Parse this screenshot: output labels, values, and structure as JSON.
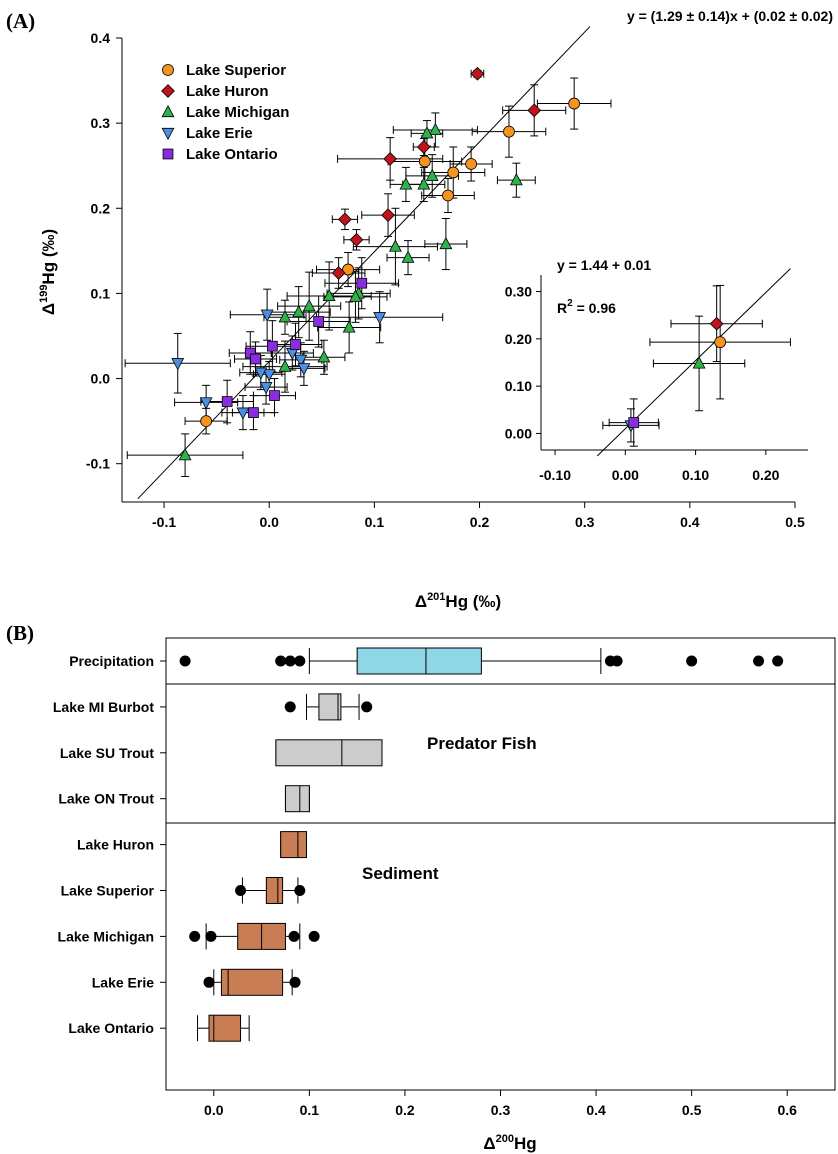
{
  "chart_data": [
    {
      "id": "A",
      "type": "scatter",
      "panel_label": "(A)",
      "xlabel": "Δ201Hg (‰)",
      "ylabel": "Δ199Hg (‰)",
      "xlim": [
        -0.14,
        0.5
      ],
      "ylim": [
        -0.145,
        0.4
      ],
      "xticks": [
        -0.1,
        0.0,
        0.1,
        0.2,
        0.3,
        0.4,
        0.5
      ],
      "xtick_labels": [
        "-0.1",
        "0.0",
        "0.1",
        "0.2",
        "0.3",
        "0.4",
        "0.5"
      ],
      "yticks": [
        -0.1,
        0.0,
        0.1,
        0.2,
        0.3,
        0.4
      ],
      "ytick_labels": [
        "-0.1",
        "0.0",
        "0.1",
        "0.2",
        "0.3",
        "0.4"
      ],
      "equation": "y = (1.29 ± 0.14)x + (0.02 ± 0.02)",
      "regression": {
        "slope": 1.29,
        "intercept": 0.02,
        "x_range": [
          -0.125,
          0.305
        ]
      },
      "legend_position": "top-left",
      "series": [
        {
          "name": "Lake Superior",
          "marker": "circle",
          "color": "#F7941D",
          "points": [
            {
              "x": -0.06,
              "y": -0.05,
              "xe": 0.02,
              "ye": 0.015
            },
            {
              "x": 0.075,
              "y": 0.128,
              "xe": 0.03,
              "ye": 0.02
            },
            {
              "x": 0.148,
              "y": 0.255,
              "xe": 0.035,
              "ye": 0.03
            },
            {
              "x": 0.175,
              "y": 0.242,
              "xe": 0.03,
              "ye": 0.03
            },
            {
              "x": 0.17,
              "y": 0.215,
              "xe": 0.025,
              "ye": 0.02
            },
            {
              "x": 0.192,
              "y": 0.252,
              "xe": 0.02,
              "ye": 0.02
            },
            {
              "x": 0.228,
              "y": 0.29,
              "xe": 0.035,
              "ye": 0.03
            },
            {
              "x": 0.29,
              "y": 0.323,
              "xe": 0.035,
              "ye": 0.03
            }
          ]
        },
        {
          "name": "Lake Huron",
          "marker": "diamond",
          "color": "#C0141C",
          "points": [
            {
              "x": 0.198,
              "y": 0.358,
              "xe": 0.006,
              "ye": 0.004
            },
            {
              "x": 0.252,
              "y": 0.315,
              "xe": 0.03,
              "ye": 0.03
            },
            {
              "x": 0.115,
              "y": 0.258,
              "xe": 0.05,
              "ye": 0.025
            },
            {
              "x": 0.147,
              "y": 0.272,
              "xe": 0.01,
              "ye": 0.01
            },
            {
              "x": 0.072,
              "y": 0.187,
              "xe": 0.012,
              "ye": 0.012
            },
            {
              "x": 0.113,
              "y": 0.192,
              "xe": 0.025,
              "ye": 0.025
            },
            {
              "x": 0.083,
              "y": 0.163,
              "xe": 0.012,
              "ye": 0.012
            },
            {
              "x": 0.066,
              "y": 0.124,
              "xe": 0.025,
              "ye": 0.018
            }
          ]
        },
        {
          "name": "Lake Michigan",
          "marker": "triangle-up",
          "color": "#2DB34A",
          "points": [
            {
              "x": 0.158,
              "y": 0.292,
              "xe": 0.04,
              "ye": 0.02
            },
            {
              "x": 0.15,
              "y": 0.288,
              "xe": 0.015,
              "ye": 0.015
            },
            {
              "x": 0.155,
              "y": 0.238,
              "xe": 0.025,
              "ye": 0.025
            },
            {
              "x": 0.147,
              "y": 0.228,
              "xe": 0.02,
              "ye": 0.02
            },
            {
              "x": 0.13,
              "y": 0.228,
              "xe": 0.015,
              "ye": 0.02
            },
            {
              "x": 0.235,
              "y": 0.233,
              "xe": 0.018,
              "ye": 0.02
            },
            {
              "x": 0.12,
              "y": 0.155,
              "xe": 0.04,
              "ye": 0.045
            },
            {
              "x": 0.168,
              "y": 0.158,
              "xe": 0.02,
              "ye": 0.03
            },
            {
              "x": 0.132,
              "y": 0.142,
              "xe": 0.02,
              "ye": 0.02
            },
            {
              "x": 0.085,
              "y": 0.1,
              "xe": 0.03,
              "ye": 0.03
            },
            {
              "x": 0.082,
              "y": 0.096,
              "xe": 0.03,
              "ye": 0.03
            },
            {
              "x": 0.057,
              "y": 0.097,
              "xe": 0.04,
              "ye": 0.04
            },
            {
              "x": 0.028,
              "y": 0.078,
              "xe": 0.03,
              "ye": 0.03
            },
            {
              "x": 0.038,
              "y": 0.085,
              "xe": 0.03,
              "ye": 0.04
            },
            {
              "x": 0.015,
              "y": 0.072,
              "xe": 0.02,
              "ye": 0.02
            },
            {
              "x": 0.076,
              "y": 0.06,
              "xe": 0.03,
              "ye": 0.03
            },
            {
              "x": 0.052,
              "y": 0.025,
              "xe": 0.02,
              "ye": 0.02
            },
            {
              "x": 0.015,
              "y": 0.014,
              "xe": 0.04,
              "ye": 0.03
            },
            {
              "x": -0.08,
              "y": -0.09,
              "xe": 0.055,
              "ye": 0.025
            }
          ]
        },
        {
          "name": "Lake Erie",
          "marker": "triangle-down",
          "color": "#4A90E2",
          "points": [
            {
              "x": -0.087,
              "y": 0.018,
              "xe": 0.05,
              "ye": 0.035
            },
            {
              "x": -0.002,
              "y": 0.075,
              "xe": 0.035,
              "ye": 0.03
            },
            {
              "x": 0.105,
              "y": 0.072,
              "xe": 0.06,
              "ye": 0.03
            },
            {
              "x": -0.06,
              "y": -0.028,
              "xe": 0.03,
              "ye": 0.02
            },
            {
              "x": -0.025,
              "y": -0.04,
              "xe": 0.02,
              "ye": 0.02
            },
            {
              "x": -0.003,
              "y": -0.01,
              "xe": 0.02,
              "ye": 0.02
            },
            {
              "x": 0.03,
              "y": 0.022,
              "xe": 0.02,
              "ye": 0.02
            },
            {
              "x": 0.033,
              "y": 0.012,
              "xe": 0.02,
              "ye": 0.02
            },
            {
              "x": 0.0,
              "y": 0.005,
              "xe": 0.015,
              "ye": 0.015
            },
            {
              "x": -0.008,
              "y": 0.007,
              "xe": 0.02,
              "ye": 0.02
            },
            {
              "x": 0.022,
              "y": 0.03,
              "xe": 0.02,
              "ye": 0.02
            }
          ]
        },
        {
          "name": "Lake Ontario",
          "marker": "square",
          "color": "#8B2BE2",
          "points": [
            {
              "x": 0.088,
              "y": 0.112,
              "xe": 0.035,
              "ye": 0.03
            },
            {
              "x": 0.047,
              "y": 0.067,
              "xe": 0.03,
              "ye": 0.03
            },
            {
              "x": 0.025,
              "y": 0.04,
              "xe": 0.025,
              "ye": 0.025
            },
            {
              "x": 0.003,
              "y": 0.038,
              "xe": 0.025,
              "ye": 0.03
            },
            {
              "x": -0.018,
              "y": 0.03,
              "xe": 0.02,
              "ye": 0.025
            },
            {
              "x": -0.013,
              "y": 0.023,
              "xe": 0.02,
              "ye": 0.02
            },
            {
              "x": -0.04,
              "y": -0.027,
              "xe": 0.025,
              "ye": 0.025
            },
            {
              "x": -0.015,
              "y": -0.04,
              "xe": 0.02,
              "ye": 0.02
            },
            {
              "x": 0.005,
              "y": -0.02,
              "xe": 0.02,
              "ye": 0.02
            }
          ]
        }
      ]
    },
    {
      "id": "A-inset",
      "type": "scatter",
      "xlim": [
        -0.12,
        0.26
      ],
      "ylim": [
        -0.035,
        0.335
      ],
      "xticks": [
        -0.1,
        0.0,
        0.1,
        0.2
      ],
      "xtick_labels": [
        "-0.10",
        "0.00",
        "0.10",
        "0.20"
      ],
      "yticks": [
        0.0,
        0.1,
        0.2,
        0.3
      ],
      "ytick_labels": [
        "0.00",
        "0.10",
        "0.20",
        "0.30"
      ],
      "equation": "y = 1.44 + 0.01",
      "r2_label": "R",
      "r2_sup": "2",
      "r2_value": " = 0.96",
      "regression": {
        "slope": 1.44,
        "intercept": 0.01,
        "x_range": [
          -0.04,
          0.235
        ]
      },
      "points": [
        {
          "series": "Lake Superior",
          "marker": "circle",
          "color": "#F7941D",
          "x": 0.135,
          "y": 0.193,
          "xe": 0.1,
          "ye": 0.12
        },
        {
          "series": "Lake Huron",
          "marker": "diamond",
          "color": "#C0141C",
          "x": 0.13,
          "y": 0.232,
          "xe": 0.065,
          "ye": 0.08
        },
        {
          "series": "Lake Michigan",
          "marker": "triangle-up",
          "color": "#2DB34A",
          "x": 0.105,
          "y": 0.148,
          "xe": 0.065,
          "ye": 0.1
        },
        {
          "series": "Lake Erie",
          "marker": "triangle-down",
          "color": "#4A90E2",
          "x": 0.008,
          "y": 0.017,
          "xe": 0.04,
          "ye": 0.035
        },
        {
          "series": "Lake Ontario",
          "marker": "square",
          "color": "#8B2BE2",
          "x": 0.012,
          "y": 0.023,
          "xe": 0.035,
          "ye": 0.05
        }
      ]
    },
    {
      "id": "B",
      "type": "box",
      "panel_label": "(B)",
      "xlabel": "Δ200Hg",
      "xlim": [
        -0.05,
        0.65
      ],
      "xticks": [
        0.0,
        0.1,
        0.2,
        0.3,
        0.4,
        0.5,
        0.6
      ],
      "xtick_labels": [
        "0.0",
        "0.1",
        "0.2",
        "0.3",
        "0.4",
        "0.5",
        "0.6"
      ],
      "group_labels": [
        "Predator Fish",
        "Sediment"
      ],
      "categories": [
        "Precipitation",
        "Lake MI Burbot",
        "Lake SU Trout",
        "Lake ON Trout",
        "Lake Huron",
        "Lake Superior",
        "Lake Michigan",
        "Lake Erie",
        "Lake Ontario"
      ],
      "boxes": [
        {
          "name": "Precipitation",
          "color": "#8FD6E6",
          "whisker_low": 0.1,
          "q1": 0.15,
          "median": 0.222,
          "q3": 0.28,
          "whisker_high": 0.405,
          "outliers": [
            -0.03,
            0.07,
            0.08,
            0.09,
            0.415,
            0.422,
            0.5,
            0.57,
            0.59
          ]
        },
        {
          "name": "Lake MI Burbot",
          "color": "#CCCCCC",
          "whisker_low": 0.097,
          "q1": 0.11,
          "median": 0.13,
          "q3": 0.133,
          "whisker_high": 0.152,
          "outliers": [
            0.08,
            0.16
          ]
        },
        {
          "name": "Lake SU Trout",
          "color": "#CCCCCC",
          "whisker_low": 0.065,
          "q1": 0.065,
          "median": 0.134,
          "q3": 0.176,
          "whisker_high": 0.176,
          "outliers": []
        },
        {
          "name": "Lake ON Trout",
          "color": "#CCCCCC",
          "whisker_low": 0.075,
          "q1": 0.075,
          "median": 0.09,
          "q3": 0.1,
          "whisker_high": 0.1,
          "outliers": []
        },
        {
          "name": "Lake Huron",
          "color": "#C87D55",
          "whisker_low": 0.07,
          "q1": 0.07,
          "median": 0.088,
          "q3": 0.097,
          "whisker_high": 0.097,
          "outliers": []
        },
        {
          "name": "Lake Superior",
          "color": "#C87D55",
          "whisker_low": 0.03,
          "q1": 0.055,
          "median": 0.067,
          "q3": 0.072,
          "whisker_high": 0.088,
          "outliers": [
            0.028,
            0.09
          ]
        },
        {
          "name": "Lake Michigan",
          "color": "#C87D55",
          "whisker_low": -0.008,
          "q1": 0.025,
          "median": 0.05,
          "q3": 0.075,
          "whisker_high": 0.09,
          "outliers": [
            -0.02,
            -0.003,
            0.084,
            0.105
          ]
        },
        {
          "name": "Lake Erie",
          "color": "#C87D55",
          "whisker_low": 0.0,
          "q1": 0.008,
          "median": 0.015,
          "q3": 0.072,
          "whisker_high": 0.082,
          "outliers": [
            -0.005,
            0.085
          ]
        },
        {
          "name": "Lake Ontario",
          "color": "#C87D55",
          "whisker_low": -0.017,
          "q1": -0.005,
          "median": 0.0,
          "q3": 0.028,
          "whisker_high": 0.037,
          "outliers": []
        }
      ]
    }
  ]
}
